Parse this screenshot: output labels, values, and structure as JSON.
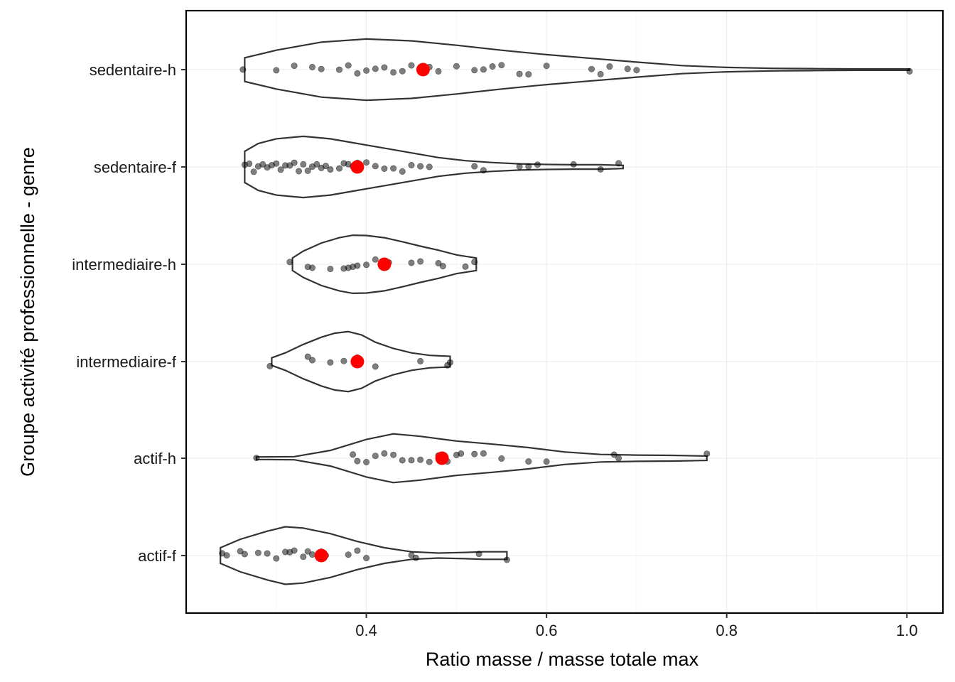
{
  "chart_data": {
    "type": "violin",
    "xlabel": "Ratio masse / masse totale max",
    "ylabel": "Groupe activité professionnelle - genre",
    "xlim": [
      0.2,
      1.04
    ],
    "x_ticks": [
      "0.4",
      "0.6",
      "0.8",
      "1.0"
    ],
    "grid": true,
    "colors": {
      "points": "#000000",
      "mean": "#ff0000",
      "violin_outline": "#333333"
    },
    "groups": [
      {
        "name": "sedentaire-h",
        "mean": 0.463,
        "range": [
          0.265,
          1.003
        ],
        "density": [
          [
            0.265,
            0.38
          ],
          [
            0.3,
            0.62
          ],
          [
            0.35,
            0.88
          ],
          [
            0.4,
            0.98
          ],
          [
            0.45,
            0.92
          ],
          [
            0.5,
            0.78
          ],
          [
            0.55,
            0.62
          ],
          [
            0.6,
            0.48
          ],
          [
            0.65,
            0.36
          ],
          [
            0.7,
            0.24
          ],
          [
            0.75,
            0.13
          ],
          [
            0.8,
            0.07
          ],
          [
            0.85,
            0.04
          ],
          [
            0.9,
            0.03
          ],
          [
            0.95,
            0.02
          ],
          [
            1.003,
            0.02
          ]
        ],
        "points": [
          0.263,
          0.3,
          0.32,
          0.34,
          0.35,
          0.37,
          0.38,
          0.39,
          0.4,
          0.41,
          0.42,
          0.43,
          0.44,
          0.45,
          0.46,
          0.47,
          0.48,
          0.5,
          0.52,
          0.53,
          0.54,
          0.55,
          0.57,
          0.58,
          0.6,
          0.65,
          0.66,
          0.67,
          0.69,
          0.7,
          1.003
        ]
      },
      {
        "name": "sedentaire-f",
        "mean": 0.39,
        "range": [
          0.265,
          0.685
        ],
        "density": [
          [
            0.265,
            0.5
          ],
          [
            0.28,
            0.75
          ],
          [
            0.3,
            0.9
          ],
          [
            0.33,
            0.98
          ],
          [
            0.36,
            0.9
          ],
          [
            0.39,
            0.75
          ],
          [
            0.42,
            0.6
          ],
          [
            0.45,
            0.45
          ],
          [
            0.48,
            0.3
          ],
          [
            0.51,
            0.2
          ],
          [
            0.54,
            0.14
          ],
          [
            0.57,
            0.1
          ],
          [
            0.6,
            0.08
          ],
          [
            0.63,
            0.07
          ],
          [
            0.66,
            0.07
          ],
          [
            0.685,
            0.05
          ]
        ],
        "points": [
          0.265,
          0.27,
          0.275,
          0.28,
          0.285,
          0.29,
          0.295,
          0.3,
          0.305,
          0.31,
          0.315,
          0.32,
          0.325,
          0.33,
          0.335,
          0.34,
          0.345,
          0.35,
          0.355,
          0.36,
          0.37,
          0.375,
          0.38,
          0.385,
          0.39,
          0.4,
          0.41,
          0.42,
          0.43,
          0.44,
          0.45,
          0.46,
          0.47,
          0.52,
          0.53,
          0.57,
          0.58,
          0.59,
          0.63,
          0.66,
          0.68
        ]
      },
      {
        "name": "intermediaire-h",
        "mean": 0.42,
        "range": [
          0.318,
          0.522
        ],
        "density": [
          [
            0.318,
            0.2
          ],
          [
            0.33,
            0.42
          ],
          [
            0.35,
            0.68
          ],
          [
            0.37,
            0.85
          ],
          [
            0.385,
            0.93
          ],
          [
            0.4,
            0.92
          ],
          [
            0.42,
            0.85
          ],
          [
            0.44,
            0.72
          ],
          [
            0.46,
            0.58
          ],
          [
            0.48,
            0.45
          ],
          [
            0.5,
            0.3
          ],
          [
            0.522,
            0.2
          ]
        ],
        "points": [
          0.315,
          0.335,
          0.34,
          0.36,
          0.375,
          0.38,
          0.385,
          0.39,
          0.4,
          0.41,
          0.425,
          0.45,
          0.46,
          0.48,
          0.485,
          0.51,
          0.52
        ]
      },
      {
        "name": "intermediaire-f",
        "mean": 0.39,
        "range": [
          0.295,
          0.493
        ],
        "density": [
          [
            0.295,
            0.12
          ],
          [
            0.31,
            0.28
          ],
          [
            0.33,
            0.55
          ],
          [
            0.35,
            0.78
          ],
          [
            0.365,
            0.91
          ],
          [
            0.38,
            0.96
          ],
          [
            0.395,
            0.85
          ],
          [
            0.41,
            0.62
          ],
          [
            0.43,
            0.42
          ],
          [
            0.45,
            0.28
          ],
          [
            0.47,
            0.2
          ],
          [
            0.493,
            0.17
          ]
        ],
        "points": [
          0.293,
          0.335,
          0.34,
          0.36,
          0.375,
          0.39,
          0.41,
          0.46,
          0.49,
          0.493
        ]
      },
      {
        "name": "actif-h",
        "mean": 0.484,
        "range": [
          0.278,
          0.778
        ],
        "density": [
          [
            0.278,
            0.04
          ],
          [
            0.32,
            0.05
          ],
          [
            0.36,
            0.25
          ],
          [
            0.4,
            0.6
          ],
          [
            0.43,
            0.78
          ],
          [
            0.46,
            0.7
          ],
          [
            0.5,
            0.55
          ],
          [
            0.54,
            0.45
          ],
          [
            0.58,
            0.34
          ],
          [
            0.62,
            0.2
          ],
          [
            0.66,
            0.12
          ],
          [
            0.7,
            0.1
          ],
          [
            0.74,
            0.09
          ],
          [
            0.778,
            0.07
          ]
        ],
        "points": [
          0.278,
          0.385,
          0.39,
          0.4,
          0.41,
          0.42,
          0.43,
          0.44,
          0.45,
          0.46,
          0.47,
          0.48,
          0.49,
          0.5,
          0.505,
          0.52,
          0.53,
          0.55,
          0.58,
          0.6,
          0.675,
          0.68,
          0.778
        ]
      },
      {
        "name": "actif-f",
        "mean": 0.35,
        "range": [
          0.238,
          0.556
        ],
        "density": [
          [
            0.238,
            0.25
          ],
          [
            0.26,
            0.52
          ],
          [
            0.29,
            0.78
          ],
          [
            0.31,
            0.92
          ],
          [
            0.33,
            0.88
          ],
          [
            0.36,
            0.7
          ],
          [
            0.39,
            0.45
          ],
          [
            0.42,
            0.25
          ],
          [
            0.45,
            0.12
          ],
          [
            0.48,
            0.08
          ],
          [
            0.51,
            0.1
          ],
          [
            0.53,
            0.12
          ],
          [
            0.556,
            0.12
          ]
        ],
        "points": [
          0.24,
          0.245,
          0.26,
          0.265,
          0.28,
          0.29,
          0.3,
          0.31,
          0.315,
          0.32,
          0.33,
          0.335,
          0.34,
          0.35,
          0.355,
          0.38,
          0.39,
          0.4,
          0.45,
          0.455,
          0.525,
          0.556
        ]
      }
    ]
  }
}
